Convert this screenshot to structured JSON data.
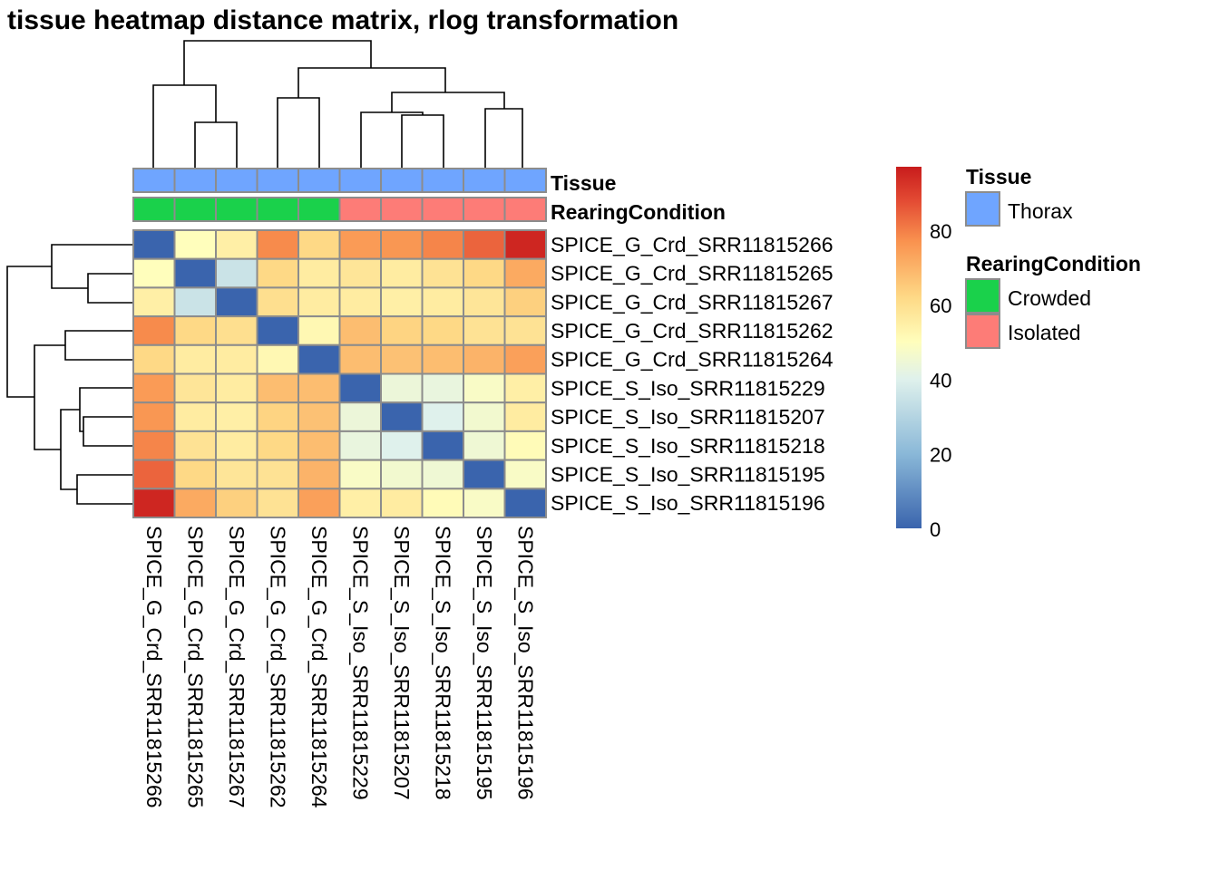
{
  "chart_data": {
    "type": "heatmap",
    "title": "tissue heatmap distance matrix, rlog transformation",
    "rows": [
      "SPICE_G_Crd_SRR11815266",
      "SPICE_G_Crd_SRR11815265",
      "SPICE_G_Crd_SRR11815267",
      "SPICE_G_Crd_SRR11815262",
      "SPICE_G_Crd_SRR11815264",
      "SPICE_S_Iso_SRR11815229",
      "SPICE_S_Iso_SRR11815207",
      "SPICE_S_Iso_SRR11815218",
      "SPICE_S_Iso_SRR11815195",
      "SPICE_S_Iso_SRR11815196"
    ],
    "columns": [
      "SPICE_G_Crd_SRR11815266",
      "SPICE_G_Crd_SRR11815265",
      "SPICE_G_Crd_SRR11815267",
      "SPICE_G_Crd_SRR11815262",
      "SPICE_G_Crd_SRR11815264",
      "SPICE_S_Iso_SRR11815229",
      "SPICE_S_Iso_SRR11815207",
      "SPICE_S_Iso_SRR11815218",
      "SPICE_S_Iso_SRR11815195",
      "SPICE_S_Iso_SRR11815196"
    ],
    "values": [
      [
        0,
        50,
        55,
        78,
        62,
        75,
        76,
        79,
        84,
        95
      ],
      [
        50,
        0,
        35,
        62,
        56,
        58,
        56,
        59,
        62,
        72
      ],
      [
        55,
        35,
        0,
        60,
        56,
        56,
        55,
        56,
        58,
        64
      ],
      [
        78,
        62,
        60,
        0,
        52,
        68,
        63,
        62,
        59,
        59
      ],
      [
        62,
        56,
        56,
        52,
        0,
        68,
        67,
        68,
        70,
        74
      ],
      [
        75,
        58,
        56,
        68,
        68,
        0,
        44,
        43,
        48,
        55
      ],
      [
        76,
        56,
        55,
        63,
        67,
        44,
        0,
        40,
        46,
        56
      ],
      [
        79,
        59,
        56,
        62,
        68,
        43,
        40,
        0,
        45,
        51
      ],
      [
        84,
        62,
        58,
        59,
        70,
        48,
        46,
        45,
        0,
        48
      ],
      [
        95,
        72,
        64,
        59,
        74,
        55,
        56,
        51,
        48,
        0
      ]
    ],
    "color_scale": {
      "min": 0,
      "max": 97,
      "ticks": [
        0,
        20,
        40,
        60,
        80
      ],
      "stops": [
        {
          "value": 0,
          "color": "#3a64ad"
        },
        {
          "value": 20,
          "color": "#8ab8d8"
        },
        {
          "value": 40,
          "color": "#dff1ec"
        },
        {
          "value": 50,
          "color": "#fffebc"
        },
        {
          "value": 62,
          "color": "#fed986"
        },
        {
          "value": 77,
          "color": "#f9924f"
        },
        {
          "value": 88,
          "color": "#e34a33"
        },
        {
          "value": 97,
          "color": "#c81c1c"
        }
      ]
    },
    "annotations": [
      {
        "name": "Tissue",
        "values": [
          "Thorax",
          "Thorax",
          "Thorax",
          "Thorax",
          "Thorax",
          "Thorax",
          "Thorax",
          "Thorax",
          "Thorax",
          "Thorax"
        ]
      },
      {
        "name": "RearingCondition",
        "values": [
          "Crowded",
          "Crowded",
          "Crowded",
          "Crowded",
          "Crowded",
          "Isolated",
          "Isolated",
          "Isolated",
          "Isolated",
          "Isolated"
        ]
      }
    ],
    "legend": [
      {
        "title": "Tissue",
        "entries": [
          {
            "label": "Thorax",
            "color": "#6fa5ff"
          }
        ]
      },
      {
        "title": "RearingCondition",
        "entries": [
          {
            "label": "Crowded",
            "color": "#1ad14b"
          },
          {
            "label": "Isolated",
            "color": "#fd7c77"
          }
        ]
      }
    ]
  }
}
